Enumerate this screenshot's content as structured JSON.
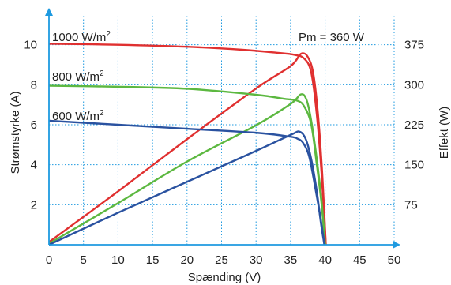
{
  "chart_data": {
    "type": "line",
    "title": "",
    "xlabel": "Spænding (V)",
    "ylabel_left": "Strømstyrke (A)",
    "ylabel_right": "Effekt (W)",
    "xlim": [
      0,
      50
    ],
    "ylim_left": [
      0,
      12
    ],
    "ylim_right": [
      0,
      450
    ],
    "x_ticks": [
      "0",
      "5",
      "10",
      "15",
      "20",
      "25",
      "30",
      "35",
      "40",
      "45",
      "50"
    ],
    "y_left_ticks": [
      "2",
      "4",
      "6",
      "8",
      "10"
    ],
    "y_right_ticks": [
      "75",
      "150",
      "225",
      "300",
      "375"
    ],
    "grid": true,
    "annotation": "Pm = 360 W",
    "series": [
      {
        "name": "1000 W/m²",
        "label_base": "1000 W/m",
        "label_sup": "2",
        "color": "#e03030",
        "current": [
          [
            0,
            10.05
          ],
          [
            10,
            10.0
          ],
          [
            20,
            9.9
          ],
          [
            28,
            9.75
          ],
          [
            33,
            9.6
          ],
          [
            35.5,
            9.5
          ],
          [
            37,
            9.3
          ],
          [
            38,
            8.6
          ],
          [
            38.8,
            6.5
          ],
          [
            39.5,
            3.5
          ],
          [
            40.1,
            0
          ]
        ],
        "power": [
          [
            0,
            5
          ],
          [
            10,
            100
          ],
          [
            20,
            198
          ],
          [
            30,
            293
          ],
          [
            35,
            335
          ],
          [
            36.5,
            358
          ],
          [
            37.5,
            352
          ],
          [
            38.3,
            320
          ],
          [
            39,
            240
          ],
          [
            39.6,
            130
          ],
          [
            40.1,
            0
          ]
        ]
      },
      {
        "name": "800 W/m²",
        "label_base": "800 W/m",
        "label_sup": "2",
        "color": "#5cb840",
        "current": [
          [
            0,
            7.95
          ],
          [
            10,
            7.9
          ],
          [
            20,
            7.8
          ],
          [
            30,
            7.5
          ],
          [
            34,
            7.3
          ],
          [
            36,
            7.2
          ],
          [
            37,
            6.9
          ],
          [
            38,
            6.0
          ],
          [
            38.8,
            4.0
          ],
          [
            39.5,
            2.0
          ],
          [
            40.0,
            0
          ]
        ],
        "power": [
          [
            0,
            2
          ],
          [
            10,
            78
          ],
          [
            20,
            156
          ],
          [
            30,
            224
          ],
          [
            35,
            264
          ],
          [
            36.5,
            282
          ],
          [
            37.3,
            272
          ],
          [
            38,
            232
          ],
          [
            38.8,
            160
          ],
          [
            39.5,
            80
          ],
          [
            40.0,
            0
          ]
        ]
      },
      {
        "name": "600 W/m²",
        "label_base": "600 W/m",
        "label_sup": "2",
        "color": "#2a52a0",
        "current": [
          [
            0,
            6.2
          ],
          [
            10,
            6.0
          ],
          [
            20,
            5.8
          ],
          [
            30,
            5.6
          ],
          [
            35,
            5.4
          ],
          [
            36,
            5.3
          ],
          [
            36.8,
            5.1
          ],
          [
            37.7,
            4.4
          ],
          [
            38.6,
            2.8
          ],
          [
            39.4,
            1.2
          ],
          [
            39.9,
            0
          ]
        ],
        "power": [
          [
            0,
            0
          ],
          [
            10,
            60
          ],
          [
            20,
            118
          ],
          [
            30,
            176
          ],
          [
            35,
            206
          ],
          [
            36.3,
            212
          ],
          [
            37.2,
            198
          ],
          [
            38,
            160
          ],
          [
            38.8,
            100
          ],
          [
            39.4,
            40
          ],
          [
            39.9,
            0
          ]
        ]
      }
    ]
  }
}
